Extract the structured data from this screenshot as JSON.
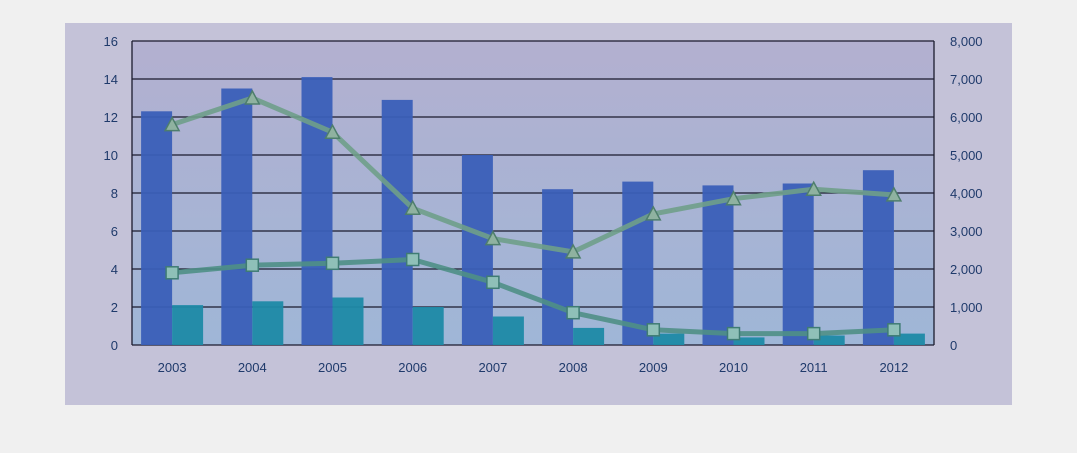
{
  "chart_data": {
    "type": "bar",
    "title": "",
    "xlabel": "",
    "ylabel": "",
    "y2label": "",
    "categories": [
      "2003",
      "2004",
      "2005",
      "2006",
      "2007",
      "2008",
      "2009",
      "2010",
      "2011",
      "2012"
    ],
    "ylim": [
      0,
      16
    ],
    "y_ticks": [
      "0",
      "2",
      "4",
      "6",
      "8",
      "10",
      "12",
      "14",
      "16"
    ],
    "y2lim": [
      0,
      8000
    ],
    "y2_ticks": [
      "0",
      "1,000",
      "2,000",
      "3,000",
      "4,000",
      "5,000",
      "6,000",
      "7,000",
      "8,000"
    ],
    "grid": true,
    "legend": "none",
    "series": [
      {
        "kind": "bar",
        "axis": "left",
        "color": "#3a5fb8",
        "values": [
          12.3,
          13.5,
          14.1,
          12.9,
          10.0,
          8.2,
          8.6,
          8.4,
          8.5,
          9.2
        ]
      },
      {
        "kind": "bar",
        "axis": "left",
        "color": "#1e8aa6",
        "values": [
          2.1,
          2.3,
          2.5,
          2.0,
          1.5,
          0.9,
          0.6,
          0.4,
          0.5,
          0.6
        ]
      },
      {
        "kind": "line",
        "axis": "right",
        "marker": "triangle",
        "color": "#6f9e8a",
        "values": [
          5800,
          6500,
          5600,
          3600,
          2800,
          2450,
          3450,
          3850,
          4100,
          3950
        ]
      },
      {
        "kind": "line",
        "axis": "right",
        "marker": "square",
        "color": "#4f8f86",
        "values": [
          1900,
          2100,
          2150,
          2250,
          1650,
          850,
          400,
          300,
          300,
          400
        ]
      }
    ],
    "colors": {
      "plot_bg_top": "#b3b0d0",
      "plot_bg_bottom": "#9fb6d7",
      "frame_bg": "#c4c2d8",
      "grid": "#1b1b2e",
      "axis_text": "#1f3a6b"
    }
  }
}
